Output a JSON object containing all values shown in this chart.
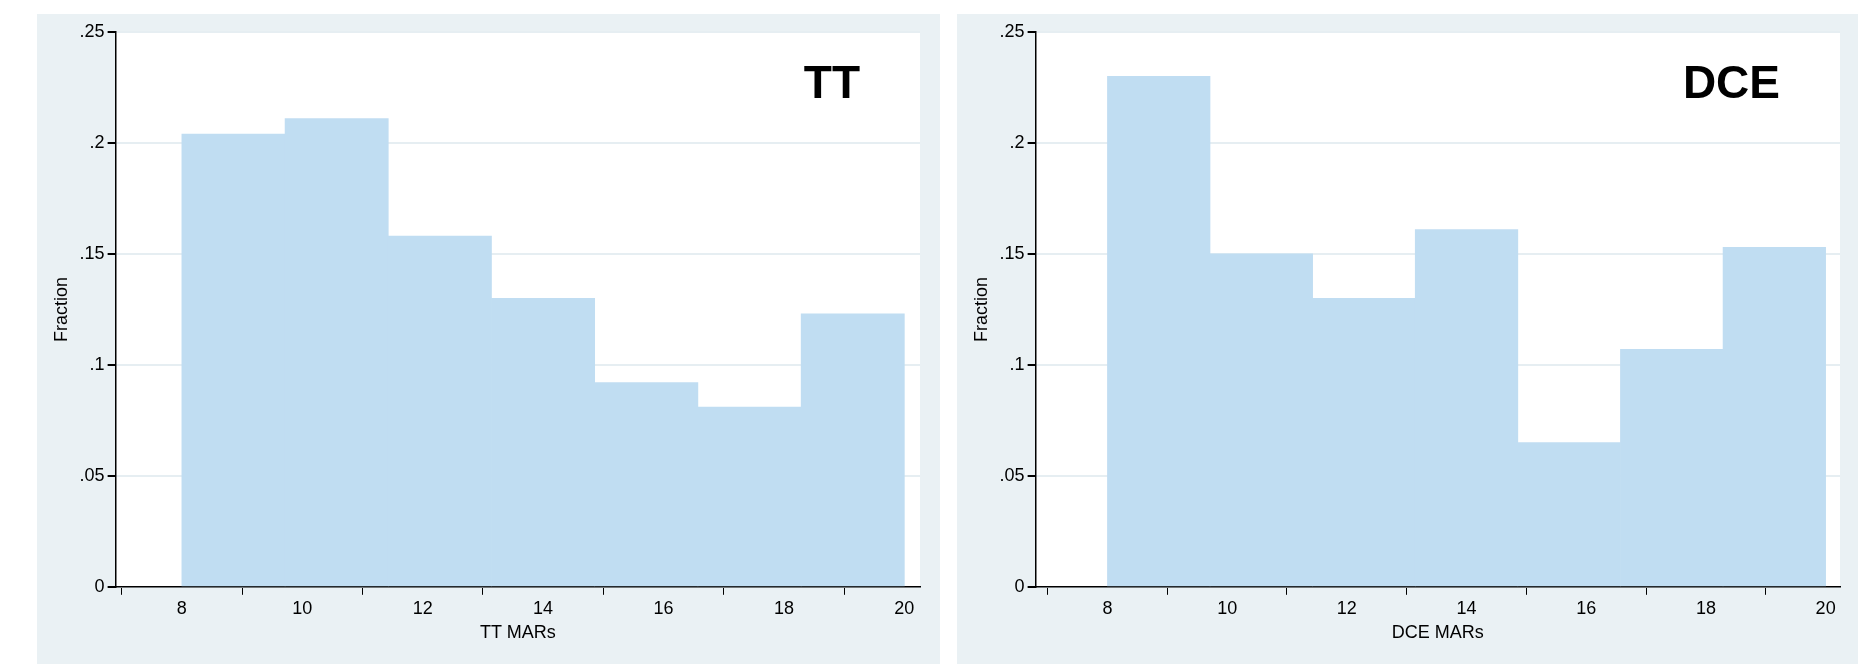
{
  "chart_data": [
    {
      "type": "histogram",
      "title": "TT",
      "xlabel": "TT MARs",
      "ylabel": "Fraction",
      "color": "#c0ddf2",
      "bins": [
        8,
        9.714,
        11.429,
        13.143,
        14.857,
        16.571,
        18.286,
        20
      ],
      "values": [
        0.204,
        0.211,
        0.158,
        0.13,
        0.092,
        0.081,
        0.123
      ],
      "xlim": [
        6.9,
        20.26
      ],
      "xticks": [
        8,
        10,
        12,
        14,
        16,
        18,
        20
      ],
      "ylim": [
        0,
        0.25
      ],
      "yticks": [
        0,
        {
          "value": 0.05,
          "label": ".05"
        },
        {
          "value": 0.1,
          "label": ".1"
        },
        {
          "value": 0.15,
          "label": ".15"
        },
        {
          "value": 0.2,
          "label": ".2"
        },
        {
          "value": 0.25,
          "label": ".25"
        }
      ],
      "grid": "y"
    },
    {
      "type": "histogram",
      "title": "DCE",
      "xlabel": "DCE MARs",
      "ylabel": "Fraction",
      "color": "#c0ddf2",
      "bins": [
        8,
        9.714,
        11.429,
        13.143,
        14.857,
        16.571,
        18.286,
        20
      ],
      "values": [
        0.23,
        0.15,
        0.13,
        0.161,
        0.065,
        0.107,
        0.153
      ],
      "xlim": [
        6.8,
        20.24
      ],
      "xticks": [
        8,
        10,
        12,
        14,
        16,
        18,
        20
      ],
      "ylim": [
        0,
        0.25
      ],
      "yticks": [
        0,
        {
          "value": 0.05,
          "label": ".05"
        },
        {
          "value": 0.1,
          "label": ".1"
        },
        {
          "value": 0.15,
          "label": ".15"
        },
        {
          "value": 0.2,
          "label": ".2"
        },
        {
          "value": 0.25,
          "label": ".25"
        }
      ],
      "grid": "y"
    }
  ]
}
